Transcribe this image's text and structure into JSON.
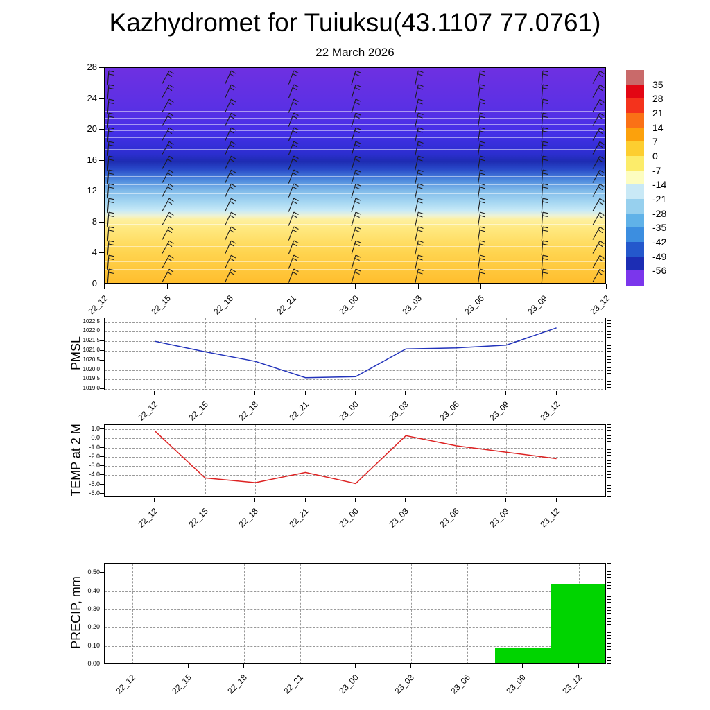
{
  "title": "Kazhydromet for Tuiuksu(43.1107 77.0761)",
  "subtitle": "22 March 2026",
  "time_labels": [
    "22_12",
    "22_15",
    "22_18",
    "22_21",
    "23_00",
    "23_03",
    "23_06",
    "23_09",
    "23_12"
  ],
  "chart_data": [
    {
      "type": "heatmap",
      "name": "wind-temperature-cross-section",
      "x_tick_labels": [
        "22_12",
        "22_15",
        "22_18",
        "22_21",
        "23_00",
        "23_03",
        "23_06",
        "23_09",
        "23_12"
      ],
      "y_ticks": [
        0,
        4,
        8,
        12,
        16,
        20,
        24,
        28
      ],
      "y_tick_labels": [
        "0",
        "4",
        "8",
        "12",
        "16",
        "20",
        "24",
        "28"
      ],
      "ylim": [
        0,
        28
      ],
      "legend_position": "right",
      "colorbar_labels": [
        "35",
        "28",
        "21",
        "14",
        "7",
        "0",
        "-7",
        "-14",
        "-21",
        "-28",
        "-35",
        "-42",
        "-49",
        "-56"
      ],
      "colorbar_colors": [
        "#c96a6a",
        "#e30613",
        "#f4331c",
        "#fa7116",
        "#fca10c",
        "#fdce30",
        "#fcec6a",
        "#fdfdc0",
        "#c9e9f6",
        "#97d0ee",
        "#60b2e8",
        "#3c8ee0",
        "#2458cc",
        "#1c2db4",
        "#7b36ec"
      ],
      "gradient_stops": [
        {
          "pos": 0.0,
          "color": "#6e30e2"
        },
        {
          "pos": 0.18,
          "color": "#5b30e4"
        },
        {
          "pos": 0.3,
          "color": "#4530e8"
        },
        {
          "pos": 0.4,
          "color": "#2c2ecf"
        },
        {
          "pos": 0.435,
          "color": "#1e2cb2"
        },
        {
          "pos": 0.47,
          "color": "#2848c8"
        },
        {
          "pos": 0.52,
          "color": "#4c88dd"
        },
        {
          "pos": 0.57,
          "color": "#80bae9"
        },
        {
          "pos": 0.625,
          "color": "#a6d7f2"
        },
        {
          "pos": 0.665,
          "color": "#c9eaf7"
        },
        {
          "pos": 0.688,
          "color": "#eff3d4"
        },
        {
          "pos": 0.705,
          "color": "#fdf0a0"
        },
        {
          "pos": 0.75,
          "color": "#ffe87e"
        },
        {
          "pos": 0.86,
          "color": "#ffd44f"
        },
        {
          "pos": 1.0,
          "color": "#ffbe2e"
        }
      ],
      "contour_fractions": [
        0.2,
        0.23,
        0.26,
        0.29,
        0.32,
        0.35,
        0.375,
        0.5,
        0.54,
        0.58,
        0.62,
        0.72,
        0.755,
        0.79,
        0.825,
        0.86,
        0.895,
        0.93,
        0.965
      ],
      "wind_barbs": {
        "columns": 9,
        "rows": 15
      }
    },
    {
      "type": "line",
      "name": "pmsl",
      "ylabel": "PMSL",
      "color": "#2233bb",
      "x": [
        "22_12",
        "22_15",
        "22_18",
        "22_21",
        "23_00",
        "23_03",
        "23_06",
        "23_09",
        "23_12"
      ],
      "values": [
        1021.5,
        1020.95,
        1020.45,
        1019.6,
        1019.65,
        1021.1,
        1021.15,
        1021.3,
        1022.2
      ],
      "y_ticks": [
        1022.5,
        1022.0,
        1021.5,
        1021.0,
        1020.5,
        1020.0,
        1019.5,
        1019.0
      ],
      "y_tick_labels": [
        "1022.5",
        "1022.0",
        "1021.5",
        "1021.0",
        "1020.5",
        "1020.0",
        "1019.5",
        "1019.0"
      ],
      "ylim": [
        1018.9,
        1022.7
      ],
      "grid": "dashed"
    },
    {
      "type": "line",
      "name": "temp-2m",
      "ylabel": "TEMP at 2 M",
      "color": "#dd2222",
      "x": [
        "22_12",
        "22_15",
        "22_18",
        "22_21",
        "23_00",
        "23_03",
        "23_06",
        "23_09",
        "23_12"
      ],
      "values": [
        0.8,
        -4.3,
        -4.8,
        -3.7,
        -4.9,
        0.3,
        -0.8,
        -1.5,
        -2.2
      ],
      "y_ticks": [
        1.0,
        0.0,
        -1.0,
        -2.0,
        -3.0,
        -4.0,
        -5.0,
        -6.0
      ],
      "y_tick_labels": [
        "1.0",
        "0.0",
        "-1.0",
        "-2.0",
        "-3.0",
        "-4.0",
        "-5.0",
        "-6.0"
      ],
      "ylim": [
        -6.45,
        1.45
      ],
      "grid": "dashed"
    },
    {
      "type": "bar",
      "name": "precip",
      "ylabel": "PRECIP, mm",
      "color": "#00d400",
      "x": [
        "22_12",
        "22_15",
        "22_18",
        "22_21",
        "23_00",
        "23_03",
        "23_06",
        "23_09",
        "23_12"
      ],
      "bars": [
        {
          "time_index": 7,
          "value": 0.09
        },
        {
          "time_index": 8,
          "value": 0.44
        }
      ],
      "y_ticks": [
        0.5,
        0.4,
        0.3,
        0.2,
        0.1,
        0.0
      ],
      "y_tick_labels": [
        "0.50",
        "0.40",
        "0.30",
        "0.20",
        "0.10",
        "0.00"
      ],
      "ylim": [
        0,
        0.55
      ],
      "grid": "dashed"
    }
  ]
}
